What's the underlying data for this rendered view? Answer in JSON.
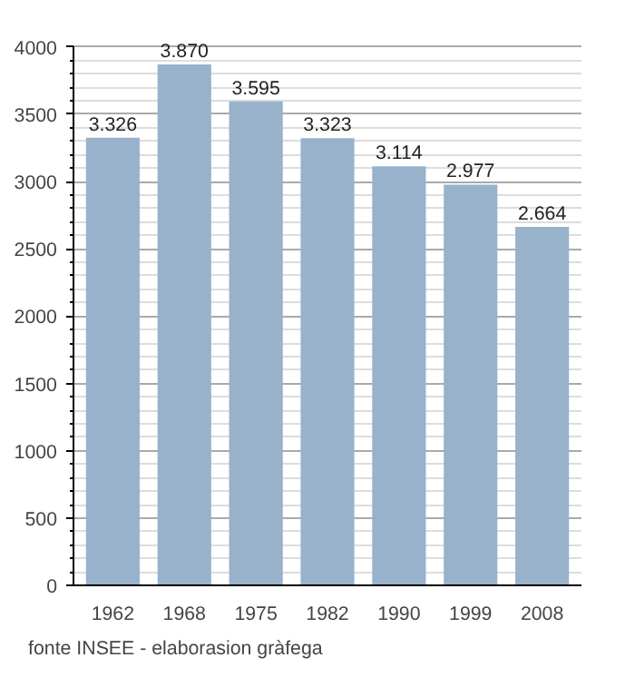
{
  "chart_data": {
    "type": "bar",
    "categories": [
      "1962",
      "1968",
      "1975",
      "1982",
      "1990",
      "1999",
      "2008"
    ],
    "values": [
      3326,
      3870,
      3595,
      3323,
      3114,
      2977,
      2664
    ],
    "value_labels": [
      "3.326",
      "3.870",
      "3.595",
      "3.323",
      "3.114",
      "2.977",
      "2.664"
    ],
    "color": "#98b2cc",
    "ylim": [
      0,
      4000
    ],
    "yticks": [
      0,
      {
        "value": 100,
        "label": null
      },
      {
        "value": 200,
        "label": null
      },
      {
        "value": 300,
        "label": null
      },
      {
        "value": 400,
        "label": null
      },
      500,
      {
        "value": 600,
        "label": null
      },
      {
        "value": 700,
        "label": null
      },
      {
        "value": 800,
        "label": null
      },
      {
        "value": 900,
        "label": null
      },
      1000,
      {
        "value": 1100,
        "label": null
      },
      {
        "value": 1200,
        "label": null
      },
      {
        "value": 1300,
        "label": null
      },
      {
        "value": 1400,
        "label": null
      },
      1500,
      {
        "value": 1600,
        "label": null
      },
      {
        "value": 1700,
        "label": null
      },
      {
        "value": 1800,
        "label": null
      },
      {
        "value": 1900,
        "label": null
      },
      2000,
      {
        "value": 2100,
        "label": null
      },
      {
        "value": 2200,
        "label": null
      },
      {
        "value": 2300,
        "label": null
      },
      {
        "value": 2400,
        "label": null
      },
      2500,
      {
        "value": 2600,
        "label": null
      },
      {
        "value": 2700,
        "label": null
      },
      {
        "value": 2800,
        "label": null
      },
      {
        "value": 2900,
        "label": null
      },
      3000,
      {
        "value": 3100,
        "label": null
      },
      {
        "value": 3200,
        "label": null
      },
      {
        "value": 3300,
        "label": null
      },
      {
        "value": 3400,
        "label": null
      },
      3500,
      {
        "value": 3600,
        "label": null
      },
      {
        "value": 3700,
        "label": null
      },
      {
        "value": 3800,
        "label": null
      },
      {
        "value": 3900,
        "label": null
      },
      4000
    ],
    "grid": "y",
    "annotations": [
      "fonte INSEE - elaborasion gràfega"
    ]
  }
}
